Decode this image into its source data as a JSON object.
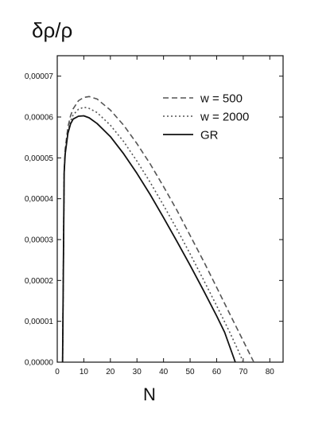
{
  "chart_data": {
    "type": "line",
    "ylabel": "δρ/ρ",
    "xlabel": "N",
    "xlim": [
      0,
      85
    ],
    "ylim": [
      0,
      7.5e-05
    ],
    "x_ticks": [
      0,
      10,
      20,
      30,
      40,
      50,
      60,
      70,
      80
    ],
    "x_tick_labels": [
      "0",
      "10",
      "20",
      "30",
      "40",
      "50",
      "60",
      "70",
      "80"
    ],
    "y_ticks": [
      0,
      1e-05,
      2e-05,
      3e-05,
      4e-05,
      5e-05,
      6e-05,
      7e-05
    ],
    "y_tick_labels": [
      "0,00000",
      "0,00001",
      "0,00002",
      "0,00003",
      "0,00004",
      "0,00005",
      "0,00006",
      "0,00007"
    ],
    "grid": false,
    "legend_position": "top-right",
    "series": [
      {
        "name": "w = 500",
        "style": "dashed",
        "color": "#555555",
        "points": [
          [
            2.0,
            0.0
          ],
          [
            2.6,
            4.65e-05
          ],
          [
            3,
            5.22e-05
          ],
          [
            4,
            5.75e-05
          ],
          [
            5,
            6.03e-05
          ],
          [
            6,
            6.2e-05
          ],
          [
            8,
            6.4e-05
          ],
          [
            10,
            6.48e-05
          ],
          [
            12,
            6.5e-05
          ],
          [
            15,
            6.44e-05
          ],
          [
            20,
            6.17e-05
          ],
          [
            25,
            5.8e-05
          ],
          [
            30,
            5.35e-05
          ],
          [
            35,
            4.85e-05
          ],
          [
            40,
            4.3e-05
          ],
          [
            45,
            3.72e-05
          ],
          [
            50,
            3.1e-05
          ],
          [
            55,
            2.48e-05
          ],
          [
            60,
            1.83e-05
          ],
          [
            65,
            1.17e-05
          ],
          [
            70,
            5.2e-06
          ],
          [
            74,
            0.0
          ]
        ]
      },
      {
        "name": "w = 2000",
        "style": "dotted",
        "color": "#555555",
        "points": [
          [
            2.0,
            0.0
          ],
          [
            2.6,
            4.65e-05
          ],
          [
            3,
            5.15e-05
          ],
          [
            4,
            5.65e-05
          ],
          [
            5,
            5.9e-05
          ],
          [
            6,
            6.05e-05
          ],
          [
            8,
            6.19e-05
          ],
          [
            10,
            6.24e-05
          ],
          [
            12,
            6.21e-05
          ],
          [
            15,
            6.11e-05
          ],
          [
            20,
            5.8e-05
          ],
          [
            25,
            5.4e-05
          ],
          [
            30,
            4.92e-05
          ],
          [
            35,
            4.4e-05
          ],
          [
            40,
            3.84e-05
          ],
          [
            45,
            3.26e-05
          ],
          [
            50,
            2.65e-05
          ],
          [
            55,
            2.02e-05
          ],
          [
            60,
            1.38e-05
          ],
          [
            65,
            7.2e-06
          ],
          [
            68,
            3e-06
          ],
          [
            70,
            0.0
          ]
        ]
      },
      {
        "name": "GR",
        "style": "solid",
        "color": "#111111",
        "points": [
          [
            2.0,
            0.0
          ],
          [
            2.6,
            4.65e-05
          ],
          [
            3,
            5.1e-05
          ],
          [
            4,
            5.6e-05
          ],
          [
            5,
            5.83e-05
          ],
          [
            6,
            5.95e-05
          ],
          [
            8,
            6.02e-05
          ],
          [
            10,
            6.03e-05
          ],
          [
            12,
            5.98e-05
          ],
          [
            15,
            5.84e-05
          ],
          [
            20,
            5.52e-05
          ],
          [
            25,
            5.1e-05
          ],
          [
            30,
            4.62e-05
          ],
          [
            35,
            4.1e-05
          ],
          [
            40,
            3.54e-05
          ],
          [
            45,
            2.96e-05
          ],
          [
            50,
            2.37e-05
          ],
          [
            55,
            1.76e-05
          ],
          [
            60,
            1.13e-05
          ],
          [
            63,
            7.3e-06
          ],
          [
            67,
            0.0
          ]
        ]
      }
    ]
  }
}
